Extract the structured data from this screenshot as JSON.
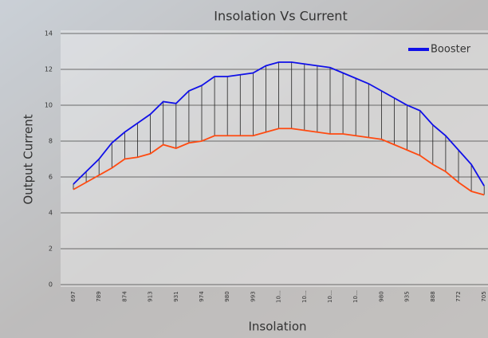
{
  "chart_data": {
    "type": "line",
    "title": "Insolation Vs Current",
    "x_label": "Insolation",
    "y_label": "Output Current",
    "categories": [
      "697",
      null,
      "789",
      null,
      "874",
      null,
      "913",
      null,
      "931",
      null,
      "974",
      null,
      "980",
      null,
      "993",
      null,
      "10…",
      null,
      "10…",
      null,
      "10…",
      null,
      "10…",
      null,
      "980",
      null,
      "935",
      null,
      "888",
      null,
      "772",
      null,
      "705"
    ],
    "series": [
      {
        "name": "Booster",
        "color": "#1010e8",
        "values": [
          5.6,
          6.3,
          7.0,
          7.9,
          8.5,
          9.0,
          9.5,
          10.2,
          10.1,
          10.8,
          11.1,
          11.6,
          11.6,
          11.7,
          11.8,
          12.2,
          12.4,
          12.4,
          12.3,
          12.2,
          12.1,
          11.8,
          11.5,
          11.2,
          10.8,
          10.4,
          10.0,
          9.7,
          8.9,
          8.3,
          7.5,
          6.7,
          5.5
        ]
      },
      {
        "color": "#ff4a10",
        "values": [
          5.3,
          5.7,
          6.1,
          6.5,
          7.0,
          7.1,
          7.3,
          7.8,
          7.6,
          7.9,
          8.0,
          8.3,
          8.3,
          8.3,
          8.3,
          8.5,
          8.7,
          8.7,
          8.6,
          8.5,
          8.4,
          8.4,
          8.3,
          8.2,
          8.1,
          7.8,
          7.5,
          7.2,
          6.7,
          6.3,
          5.7,
          5.2,
          5.0
        ]
      }
    ],
    "drop_lines": true,
    "ylim": [
      0,
      14
    ],
    "yticks": [
      0,
      2,
      4,
      6,
      8,
      10,
      12,
      14
    ],
    "grid": true,
    "legend": "top-right"
  }
}
